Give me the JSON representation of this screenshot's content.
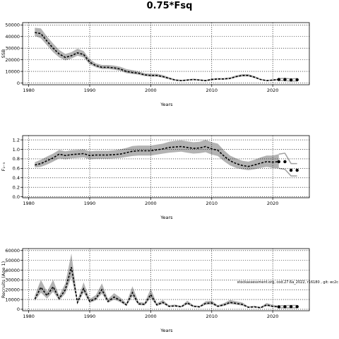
{
  "figure": {
    "title": "0.75*Fsq",
    "note": "stockassessment.org, cod.27.6a_2022, r16180 , git: ec2c"
  },
  "chart_data": [
    {
      "type": "line",
      "id": "ssb",
      "ylabel": "SSB",
      "xlabel": "Years",
      "xlim": [
        1979,
        2026
      ],
      "ylim": [
        -1500,
        52000
      ],
      "xticks": [
        1980,
        1990,
        2000,
        2010,
        2020
      ],
      "yticks": [
        0,
        10000,
        20000,
        30000,
        40000,
        50000
      ],
      "ytick_labels": [
        "0",
        "10000",
        "20000",
        "30000",
        "40000",
        "50000"
      ],
      "grid": true,
      "series": [
        {
          "role": "estimate",
          "x": [
            1981,
            1982,
            1983,
            1984,
            1985,
            1986,
            1987,
            1988,
            1989,
            1990,
            1991,
            1992,
            1993,
            1994,
            1995,
            1996,
            1997,
            1998,
            1999,
            2000,
            2001,
            2002,
            2003,
            2004,
            2005,
            2006,
            2007,
            2008,
            2009,
            2010,
            2011,
            2012,
            2013,
            2014,
            2015,
            2016,
            2017,
            2018,
            2019,
            2020,
            2021
          ],
          "values": [
            43500,
            42500,
            36000,
            30000,
            25000,
            22000,
            23500,
            26000,
            24500,
            18000,
            15000,
            13500,
            13500,
            13000,
            12000,
            10000,
            9000,
            8500,
            7000,
            6500,
            6500,
            5500,
            4000,
            2500,
            2000,
            2500,
            3000,
            2500,
            2000,
            3000,
            3500,
            3500,
            4000,
            5500,
            6500,
            6500,
            5000,
            3000,
            2000,
            2500,
            3000
          ],
          "lower": [
            40500,
            38500,
            32500,
            26500,
            22000,
            19500,
            21000,
            23500,
            22000,
            16000,
            13500,
            12000,
            12000,
            11500,
            10500,
            8500,
            7800,
            7200,
            6000,
            5500,
            5500,
            4600,
            3300,
            2000,
            1500,
            2000,
            2400,
            2000,
            1500,
            2400,
            2800,
            2800,
            3300,
            4700,
            5600,
            5600,
            4300,
            2500,
            1600,
            2000,
            2400
          ],
          "upper": [
            47500,
            47000,
            40000,
            34000,
            28500,
            25000,
            26500,
            29500,
            27500,
            20500,
            17000,
            15500,
            15500,
            15000,
            14000,
            12000,
            11000,
            10000,
            8500,
            8000,
            8000,
            6800,
            5000,
            3300,
            2700,
            3200,
            3800,
            3200,
            2700,
            3800,
            4300,
            4300,
            4900,
            6500,
            7600,
            7600,
            5900,
            3700,
            2600,
            3100,
            3700
          ]
        },
        {
          "role": "forecast",
          "x": [
            2021,
            2022,
            2023,
            2024
          ],
          "values": [
            3000,
            3000,
            2600,
            2800
          ],
          "lower": [
            2200,
            2000,
            1700,
            1800
          ],
          "upper": [
            3800,
            4000,
            3500,
            3800
          ]
        }
      ]
    },
    {
      "type": "line",
      "id": "fbar",
      "ylabel": "F₂₋₅",
      "xlabel": "Years",
      "xlim": [
        1979,
        2026
      ],
      "ylim": [
        -0.02,
        1.29
      ],
      "xticks": [
        1980,
        1990,
        2000,
        2010,
        2020
      ],
      "yticks": [
        0,
        0.2,
        0.4,
        0.6,
        0.8,
        1.0,
        1.2
      ],
      "ytick_labels": [
        "0.0",
        "0.2",
        "0.4",
        "0.6",
        "0.8",
        "1.0",
        "1.2"
      ],
      "grid": true,
      "series": [
        {
          "role": "estimate",
          "x": [
            1981,
            1982,
            1983,
            1984,
            1985,
            1986,
            1987,
            1988,
            1989,
            1990,
            1991,
            1992,
            1993,
            1994,
            1995,
            1996,
            1997,
            1998,
            1999,
            2000,
            2001,
            2002,
            2003,
            2004,
            2005,
            2006,
            2007,
            2008,
            2009,
            2010,
            2011,
            2012,
            2013,
            2014,
            2015,
            2016,
            2017,
            2018,
            2019,
            2020,
            2021
          ],
          "values": [
            0.67,
            0.7,
            0.76,
            0.82,
            0.9,
            0.87,
            0.89,
            0.9,
            0.91,
            0.87,
            0.88,
            0.88,
            0.88,
            0.89,
            0.9,
            0.93,
            0.96,
            0.97,
            0.97,
            0.97,
            0.99,
            1.01,
            1.04,
            1.05,
            1.06,
            1.04,
            1.02,
            1.03,
            1.06,
            1.01,
            0.98,
            0.86,
            0.76,
            0.7,
            0.66,
            0.64,
            0.67,
            0.71,
            0.74,
            0.73,
            0.74
          ],
          "lower": [
            0.62,
            0.63,
            0.68,
            0.74,
            0.81,
            0.79,
            0.81,
            0.82,
            0.83,
            0.79,
            0.8,
            0.8,
            0.8,
            0.81,
            0.82,
            0.84,
            0.86,
            0.87,
            0.87,
            0.87,
            0.89,
            0.91,
            0.93,
            0.94,
            0.95,
            0.93,
            0.91,
            0.92,
            0.94,
            0.89,
            0.86,
            0.75,
            0.66,
            0.61,
            0.58,
            0.56,
            0.58,
            0.61,
            0.63,
            0.61,
            0.6
          ],
          "upper": [
            0.73,
            0.78,
            0.85,
            0.91,
            0.99,
            0.96,
            0.98,
            0.99,
            1.0,
            0.96,
            0.97,
            0.97,
            0.97,
            0.98,
            1.0,
            1.03,
            1.07,
            1.08,
            1.08,
            1.08,
            1.1,
            1.12,
            1.16,
            1.18,
            1.19,
            1.17,
            1.15,
            1.16,
            1.2,
            1.15,
            1.12,
            0.98,
            0.87,
            0.81,
            0.76,
            0.74,
            0.78,
            0.83,
            0.87,
            0.87,
            0.9
          ]
        },
        {
          "role": "forecast",
          "x": [
            2021,
            2022,
            2023,
            2024
          ],
          "values": [
            0.74,
            0.74,
            0.56,
            0.56
          ],
          "lower": [
            0.6,
            0.58,
            0.44,
            0.44
          ],
          "upper": [
            0.9,
            0.92,
            0.7,
            0.7
          ]
        }
      ]
    },
    {
      "type": "line",
      "id": "recruits",
      "ylabel": "Recruits (Age 1)",
      "xlabel": "Years",
      "xlim": [
        1979,
        2026
      ],
      "ylim": [
        -1500,
        62000
      ],
      "xticks": [
        1980,
        1990,
        2000,
        2010,
        2020
      ],
      "yticks": [
        0,
        10000,
        20000,
        30000,
        40000,
        50000,
        60000
      ],
      "ytick_labels": [
        "0",
        "10000",
        "20000",
        "30000",
        "40000",
        "50000",
        "60000"
      ],
      "grid": true,
      "series": [
        {
          "role": "estimate",
          "x": [
            1981,
            1982,
            1983,
            1984,
            1985,
            1986,
            1987,
            1988,
            1989,
            1990,
            1991,
            1992,
            1993,
            1994,
            1995,
            1996,
            1997,
            1998,
            1999,
            2000,
            2001,
            2002,
            2003,
            2004,
            2005,
            2006,
            2007,
            2008,
            2009,
            2010,
            2011,
            2012,
            2013,
            2014,
            2015,
            2016,
            2017,
            2018,
            2019,
            2020,
            2021
          ],
          "values": [
            10500,
            22500,
            14000,
            23000,
            11000,
            20000,
            43000,
            7000,
            21000,
            8000,
            11000,
            20000,
            8000,
            12500,
            9000,
            4500,
            17000,
            5500,
            5000,
            15000,
            4500,
            7000,
            3000,
            3500,
            2500,
            6500,
            3000,
            2500,
            6000,
            6500,
            3000,
            4500,
            7000,
            6000,
            5000,
            2000,
            2500,
            1500,
            4500,
            3000,
            2500
          ],
          "lower": [
            8500,
            17000,
            11000,
            18000,
            9000,
            16000,
            33000,
            5500,
            17000,
            6500,
            9000,
            16000,
            6500,
            10000,
            7200,
            3500,
            13000,
            4300,
            4000,
            11500,
            3500,
            5500,
            2300,
            2700,
            1900,
            5000,
            2300,
            1900,
            4600,
            5000,
            2300,
            3500,
            5400,
            4600,
            3800,
            1500,
            1800,
            1000,
            3200,
            2100,
            1700
          ],
          "upper": [
            14000,
            30000,
            18000,
            30000,
            14000,
            26500,
            57000,
            9500,
            27500,
            10500,
            14500,
            26500,
            10500,
            16500,
            12000,
            6200,
            23500,
            7500,
            6800,
            21000,
            6300,
            9500,
            4200,
            4800,
            3500,
            8800,
            4200,
            3500,
            8200,
            8800,
            4200,
            6200,
            9500,
            8200,
            7000,
            2900,
            3600,
            2400,
            6500,
            4500,
            3800
          ]
        },
        {
          "role": "forecast",
          "x": [
            2021,
            2022,
            2023,
            2024
          ],
          "values": [
            2500,
            2600,
            2700,
            2700
          ],
          "lower": [
            1500,
            1500,
            1600,
            1600
          ],
          "upper": [
            3500,
            3800,
            3900,
            3900
          ]
        }
      ]
    }
  ]
}
